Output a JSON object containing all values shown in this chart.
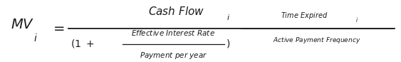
{
  "figsize": [
    5.63,
    0.87
  ],
  "dpi": 100,
  "bg_color": "#ffffff",
  "text_color": "#1a1a1a",
  "lhs_main": "MV",
  "lhs_sub": "i",
  "equals": "=",
  "numerator": "Cash Flow",
  "numerator_sub": "i",
  "denom_prefix": "(1 +",
  "inner_num": "Effective Interest Rate",
  "inner_den": "Payment per year",
  "denom_suffix": ")",
  "exp_num": "Time Expired",
  "exp_num_sub": "i",
  "exp_den": "Active Payment Frequency",
  "main_frac_line_color": "#1a1a1a",
  "inner_frac_line_color": "#1a1a1a",
  "exp_frac_line_color": "#1a1a1a"
}
